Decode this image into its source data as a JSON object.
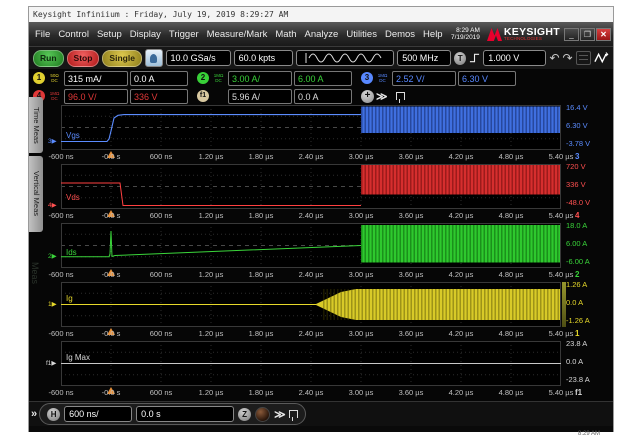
{
  "window_title": "Keysight Infiniium : Friday, July 19, 2019 8:29:27 AM",
  "menu": {
    "items": [
      "File",
      "Control",
      "Setup",
      "Display",
      "Trigger",
      "Measure/Mark",
      "Math",
      "Analyze",
      "Utilities",
      "Demos",
      "Help"
    ],
    "clock_time": "8:29 AM",
    "clock_date": "7/19/2019",
    "brand": "KEYSIGHT",
    "brand_sub": "TECHNOLOGIES"
  },
  "toolbar": {
    "run": "Run",
    "stop": "Stop",
    "single": "Single",
    "sample_rate": "10.0 GSa/s",
    "memory_depth": "60.0 kpts",
    "bandwidth": "500 MHz",
    "trigger_source": "T",
    "trigger_level": "1.000 V"
  },
  "meas": {
    "channels": [
      {
        "id": "1",
        "badge_imp": "50Ω",
        "badge_coup": "DC",
        "scale": "315 mA/",
        "offset": "0.0 A",
        "color": "#e0d030"
      },
      {
        "id": "2",
        "badge_imp": "1MΩ",
        "badge_coup": "DC",
        "scale": "3.00 A/",
        "offset": "6.00 A",
        "color": "#38d038"
      },
      {
        "id": "3",
        "badge_imp": "1MΩ",
        "badge_coup": "DC",
        "scale": "2.52 V/",
        "offset": "6.30 V",
        "color": "#5888ff"
      },
      {
        "id": "4",
        "badge_imp": "1MΩ",
        "badge_coup": "DC",
        "scale": "96.0 V/",
        "offset": "336 V",
        "color": "#e03838"
      },
      {
        "id": "f1",
        "scale": "5.96 A/",
        "offset": "0.0 A",
        "color": "#d8c8a0"
      }
    ]
  },
  "panels": [
    {
      "name": "Vgs",
      "channel": "3",
      "color": "#5b8cff",
      "labels": {
        "top": "16.4 V",
        "mid": "6.30 V",
        "bottom": "-3.78 V"
      }
    },
    {
      "name": "Vds",
      "channel": "4",
      "color": "#ff5050",
      "labels": {
        "top": "720 V",
        "mid": "336 V",
        "bottom": "-48.0 V"
      }
    },
    {
      "name": "Ids",
      "channel": "2",
      "color": "#3ad43a",
      "labels": {
        "top": "18.0 A",
        "mid": "6.00 A",
        "bottom": "-6.00 A"
      }
    },
    {
      "name": "Ig",
      "channel": "1",
      "color": "#e6d82a",
      "labels": {
        "top": "1.26 A",
        "mid": "0.0 A",
        "bottom": "-1.26 A"
      }
    },
    {
      "name": "Ig Max",
      "channel": "f1",
      "color": "#d8d8d8",
      "labels": {
        "top": "23.8 A",
        "mid": "0.0 A",
        "bottom": "-23.8 A"
      }
    }
  ],
  "time_axis": [
    "-600 ns",
    "-0.0 s",
    "600 ns",
    "1.20 µs",
    "1.80 µs",
    "2.40 µs",
    "3.00 µs",
    "3.60 µs",
    "4.20 µs",
    "4.80 µs",
    "5.40 µs"
  ],
  "side_tabs": [
    "Time Meas",
    "Vertical Meas"
  ],
  "bottom": {
    "h": "H",
    "timebase": "600 ns/",
    "position": "0.0 s"
  },
  "footer_time": "8:29 AM"
}
